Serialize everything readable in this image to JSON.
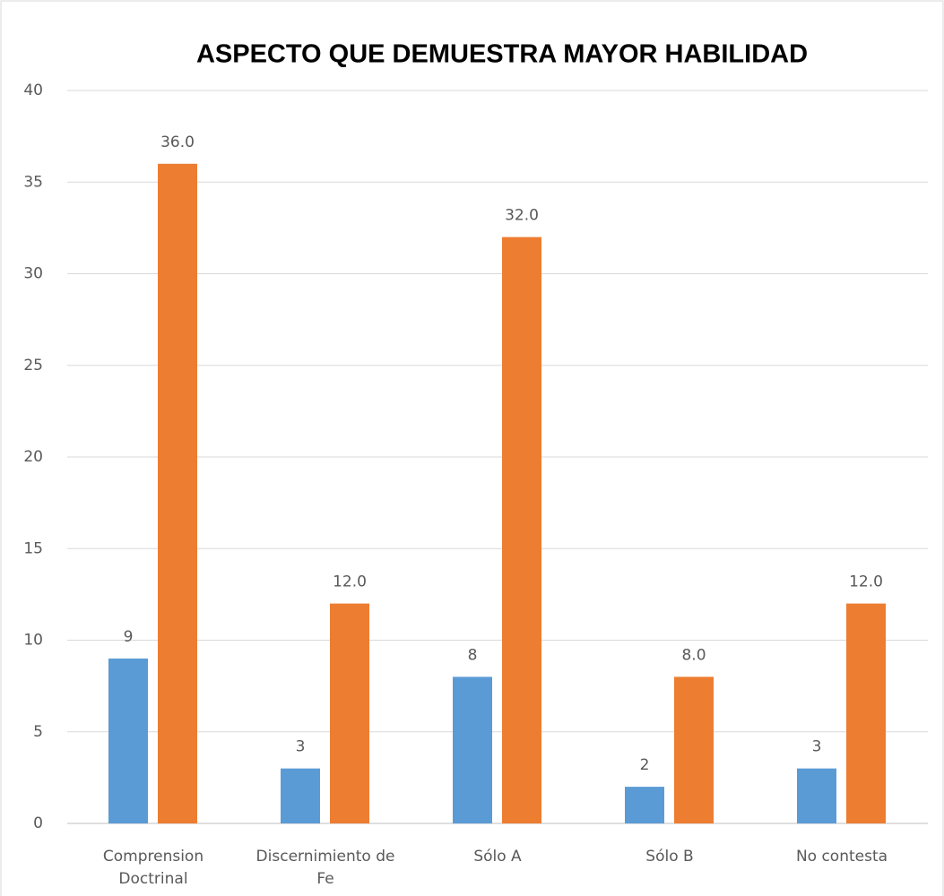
{
  "chart_data": {
    "type": "bar",
    "title": "ASPECTO QUE DEMUESTRA MAYOR HABILIDAD",
    "categories": [
      "Comprension Doctrinal",
      "Discernimiento de Fe",
      "Sólo A",
      "Sólo B",
      "No contesta"
    ],
    "series": [
      {
        "color": "#5b9bd5",
        "values": [
          9,
          3,
          8,
          2,
          3
        ]
      },
      {
        "color": "#ed7d31",
        "values": [
          36,
          12,
          32,
          8,
          12
        ],
        "value_labels": [
          "36.0",
          "12.0",
          "32.0",
          "8.0",
          "12.0"
        ]
      }
    ],
    "ylim": [
      0,
      40
    ],
    "yticks": [
      0,
      5,
      10,
      15,
      20,
      25,
      30,
      35,
      40
    ],
    "grid": true
  }
}
